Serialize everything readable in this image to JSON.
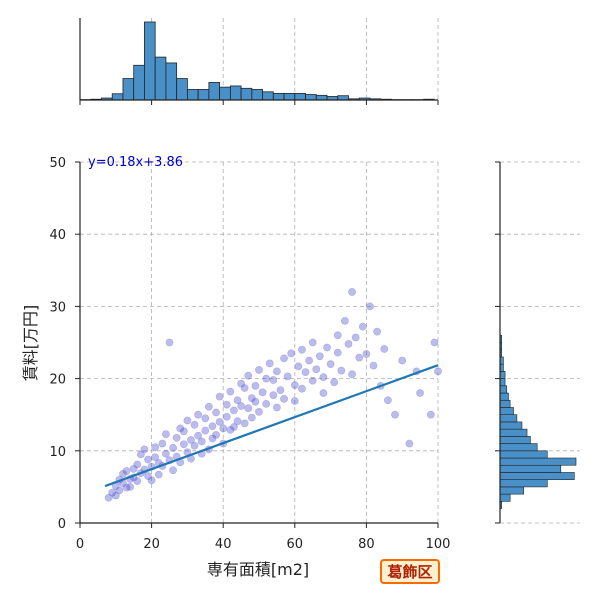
{
  "chart_data": {
    "type": "scatter",
    "title": "",
    "xlabel": "専有面積[m2]",
    "ylabel": "賃料[万円]",
    "xlim": [
      0,
      100
    ],
    "ylim": [
      0,
      50
    ],
    "xticks": [
      "0",
      "20",
      "40",
      "60",
      "80",
      "100"
    ],
    "yticks": [
      "0",
      "10",
      "20",
      "30",
      "40",
      "50"
    ],
    "grid": true,
    "regression": {
      "label": "y=0.18x+3.86",
      "slope": 0.18,
      "intercept": 3.86,
      "x_range": [
        7,
        100
      ],
      "color": "#1f77b4"
    },
    "scatter_points": [
      [
        8,
        3.5
      ],
      [
        9,
        4.2
      ],
      [
        10,
        5.1
      ],
      [
        10,
        3.8
      ],
      [
        11,
        6.0
      ],
      [
        11,
        4.5
      ],
      [
        12,
        5.5
      ],
      [
        12,
        6.8
      ],
      [
        13,
        4.9
      ],
      [
        13,
        7.2
      ],
      [
        14,
        6.1
      ],
      [
        14,
        5.0
      ],
      [
        15,
        7.5
      ],
      [
        15,
        6.3
      ],
      [
        16,
        5.8
      ],
      [
        16,
        8.1
      ],
      [
        17,
        6.9
      ],
      [
        17,
        9.5
      ],
      [
        18,
        7.4
      ],
      [
        18,
        10.2
      ],
      [
        19,
        6.5
      ],
      [
        19,
        8.8
      ],
      [
        20,
        7.8
      ],
      [
        20,
        5.9
      ],
      [
        21,
        9.1
      ],
      [
        21,
        10.5
      ],
      [
        22,
        8.3
      ],
      [
        22,
        6.7
      ],
      [
        23,
        11.0
      ],
      [
        23,
        7.9
      ],
      [
        24,
        9.6
      ],
      [
        24,
        12.3
      ],
      [
        25,
        8.7
      ],
      [
        25,
        25.0
      ],
      [
        26,
        10.4
      ],
      [
        26,
        7.3
      ],
      [
        27,
        11.8
      ],
      [
        27,
        9.2
      ],
      [
        28,
        13.1
      ],
      [
        28,
        8.4
      ],
      [
        29,
        10.9
      ],
      [
        29,
        12.7
      ],
      [
        30,
        9.8
      ],
      [
        30,
        14.2
      ],
      [
        31,
        11.5
      ],
      [
        31,
        8.9
      ],
      [
        32,
        13.6
      ],
      [
        32,
        10.7
      ],
      [
        33,
        12.1
      ],
      [
        33,
        15.0
      ],
      [
        34,
        11.3
      ],
      [
        34,
        9.6
      ],
      [
        35,
        14.5
      ],
      [
        35,
        12.8
      ],
      [
        36,
        10.2
      ],
      [
        36,
        16.1
      ],
      [
        37,
        13.4
      ],
      [
        37,
        11.7
      ],
      [
        38,
        15.3
      ],
      [
        38,
        12.2
      ],
      [
        39,
        14.0
      ],
      [
        39,
        17.5
      ],
      [
        40,
        13.1
      ],
      [
        40,
        11.0
      ],
      [
        41,
        16.4
      ],
      [
        41,
        14.7
      ],
      [
        42,
        12.9
      ],
      [
        42,
        18.2
      ],
      [
        43,
        15.6
      ],
      [
        43,
        13.3
      ],
      [
        44,
        17.0
      ],
      [
        44,
        14.1
      ],
      [
        45,
        19.3
      ],
      [
        45,
        16.2
      ],
      [
        46,
        13.8
      ],
      [
        46,
        18.7
      ],
      [
        47,
        15.9
      ],
      [
        47,
        20.4
      ],
      [
        48,
        17.3
      ],
      [
        48,
        14.6
      ],
      [
        49,
        19.0
      ],
      [
        49,
        16.8
      ],
      [
        50,
        21.2
      ],
      [
        50,
        15.4
      ],
      [
        51,
        18.1
      ],
      [
        52,
        20.0
      ],
      [
        52,
        16.5
      ],
      [
        53,
        22.1
      ],
      [
        54,
        17.7
      ],
      [
        54,
        19.8
      ],
      [
        55,
        16.0
      ],
      [
        55,
        21.0
      ],
      [
        56,
        18.4
      ],
      [
        57,
        22.8
      ],
      [
        57,
        17.2
      ],
      [
        58,
        20.3
      ],
      [
        59,
        23.5
      ],
      [
        60,
        19.1
      ],
      [
        60,
        16.9
      ],
      [
        61,
        21.7
      ],
      [
        62,
        24.0
      ],
      [
        62,
        18.6
      ],
      [
        63,
        20.9
      ],
      [
        64,
        22.5
      ],
      [
        65,
        19.7
      ],
      [
        65,
        25.0
      ],
      [
        66,
        21.3
      ],
      [
        67,
        23.1
      ],
      [
        68,
        20.2
      ],
      [
        68,
        18.0
      ],
      [
        69,
        24.3
      ],
      [
        70,
        22.0
      ],
      [
        71,
        19.5
      ],
      [
        72,
        26.0
      ],
      [
        72,
        23.6
      ],
      [
        73,
        21.1
      ],
      [
        74,
        28.0
      ],
      [
        75,
        24.8
      ],
      [
        76,
        32.0
      ],
      [
        76,
        20.6
      ],
      [
        77,
        25.7
      ],
      [
        78,
        22.9
      ],
      [
        79,
        27.2
      ],
      [
        80,
        23.4
      ],
      [
        81,
        30.0
      ],
      [
        82,
        21.8
      ],
      [
        83,
        26.5
      ],
      [
        84,
        19.0
      ],
      [
        85,
        24.1
      ],
      [
        86,
        17.0
      ],
      [
        88,
        15.0
      ],
      [
        90,
        22.5
      ],
      [
        92,
        11.0
      ],
      [
        94,
        21.0
      ],
      [
        95,
        18.0
      ],
      [
        98,
        15.0
      ],
      [
        100,
        21.0
      ],
      [
        99,
        25.0
      ]
    ],
    "top_histogram": {
      "bin_width": 3,
      "bin_starts": [
        0,
        3,
        6,
        9,
        12,
        15,
        18,
        21,
        24,
        27,
        30,
        33,
        36,
        39,
        42,
        45,
        48,
        51,
        54,
        57,
        60,
        63,
        66,
        69,
        72,
        75,
        78,
        81,
        84,
        87,
        90,
        93,
        96,
        99
      ],
      "counts": [
        1,
        2,
        5,
        16,
        55,
        89,
        200,
        110,
        95,
        55,
        27,
        27,
        45,
        33,
        36,
        30,
        27,
        21,
        17,
        17,
        17,
        14,
        12,
        9,
        11,
        3,
        5,
        3,
        2,
        1,
        1,
        1,
        2,
        0
      ],
      "max_count": 200
    },
    "right_histogram": {
      "bin_width": 1,
      "bin_starts": [
        2,
        3,
        4,
        5,
        6,
        7,
        8,
        9,
        10,
        11,
        12,
        13,
        14,
        15,
        16,
        17,
        18,
        19,
        20,
        21,
        22,
        23,
        24,
        25
      ],
      "counts": [
        1,
        6,
        14,
        28,
        44,
        36,
        45,
        28,
        22,
        18,
        16,
        13,
        10,
        8,
        6,
        5,
        4,
        3,
        3,
        2,
        2,
        1,
        1,
        1
      ],
      "max_count": 45
    }
  },
  "badge": {
    "label": "葛飾区"
  }
}
